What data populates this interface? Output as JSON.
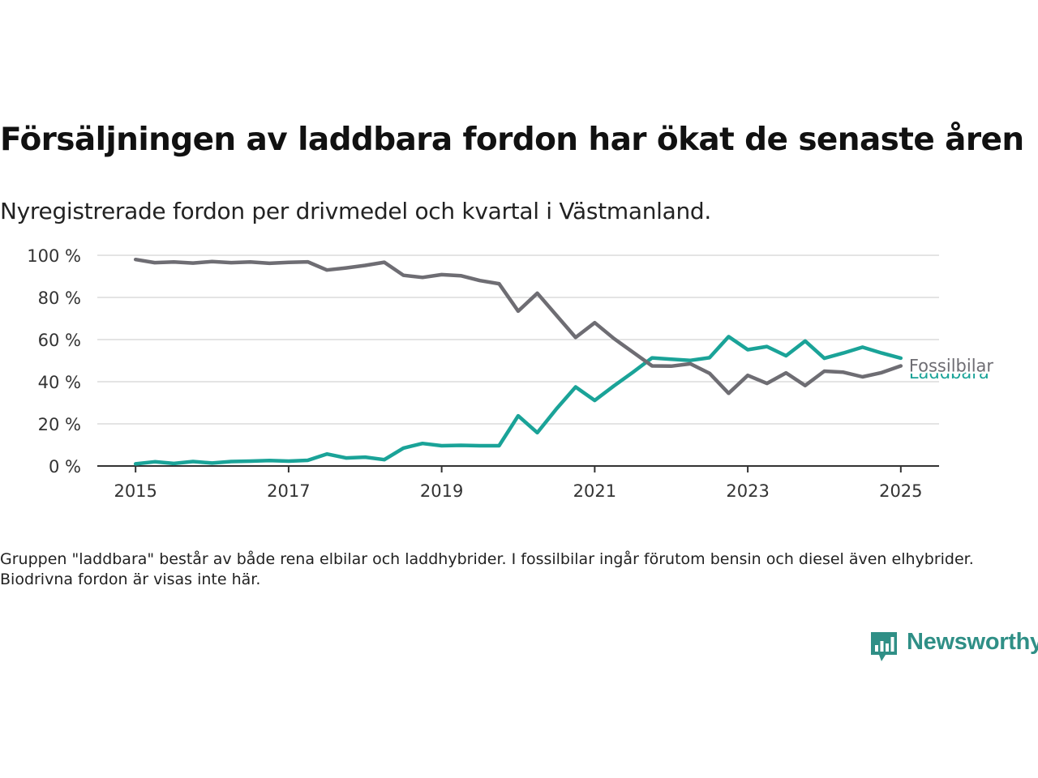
{
  "title": "Försäljningen av laddbara fordon har ökat de senaste åren",
  "subtitle": "Nyregistrerade fordon per drivmedel och kvartal i Västmanland.",
  "note": "Gruppen \"laddbara\" består av både rena elbilar och laddhybrider. I fossilbilar ingår förutom bensin och diesel även elhybrider. Biodrivna fordon är visas inte här.",
  "brand": {
    "name": "Newsworthy"
  },
  "chart_data": {
    "type": "line",
    "x_label": "",
    "y_label": "",
    "y_ticks": [
      "100 %",
      "80 %",
      "60 %",
      "40 %",
      "20 %",
      "0 %"
    ],
    "y_tick_values": [
      100,
      80,
      60,
      40,
      20,
      0
    ],
    "x_ticks": [
      "2015",
      "2017",
      "2019",
      "2021",
      "2023",
      "2025"
    ],
    "x_tick_values": [
      2015,
      2017,
      2019,
      2021,
      2023,
      2025
    ],
    "ylim": [
      0,
      100
    ],
    "xlim": [
      2014.5,
      2025.5
    ],
    "grid": true,
    "legend": "end-of-line labels",
    "x": [
      2015.0,
      2015.25,
      2015.5,
      2015.75,
      2016.0,
      2016.25,
      2016.5,
      2016.75,
      2017.0,
      2017.25,
      2017.5,
      2017.75,
      2018.0,
      2018.25,
      2018.5,
      2018.75,
      2019.0,
      2019.25,
      2019.5,
      2019.75,
      2020.0,
      2020.25,
      2020.5,
      2020.75,
      2021.0,
      2021.25,
      2021.5,
      2021.75,
      2022.0,
      2022.25,
      2022.5,
      2022.75,
      2023.0,
      2023.25,
      2023.5,
      2023.75,
      2024.0,
      2024.25,
      2024.5,
      2024.75,
      2025.0
    ],
    "series": [
      {
        "name": "Fossilbilar",
        "color": "#6e6d73",
        "values": [
          98,
          96.5,
          96.8,
          96.3,
          97,
          96.5,
          96.8,
          96.2,
          96.6,
          96.9,
          93,
          94,
          95.2,
          96.7,
          90.5,
          89.5,
          90.8,
          90.3,
          88,
          86.5,
          73.5,
          82,
          71.5,
          61,
          68,
          60.5,
          54,
          47.5,
          47.4,
          48.5,
          44,
          34.5,
          43,
          39.2,
          44.2,
          38.2,
          45,
          44.5,
          42.3,
          44.3,
          47.5
        ]
      },
      {
        "name": "Laddbara",
        "color": "#1aa398",
        "values": [
          1,
          2,
          1.2,
          2.1,
          1.4,
          2.1,
          2.3,
          2.6,
          2.3,
          2.7,
          5.7,
          3.8,
          4.2,
          3,
          8.5,
          10.7,
          9.6,
          9.8,
          9.6,
          9.6,
          23.8,
          15.8,
          27.1,
          37.5,
          31.1,
          38,
          44.5,
          51.3,
          50.7,
          50.1,
          51.4,
          61.4,
          55.2,
          56.7,
          52.3,
          59.3,
          51.1,
          53.6,
          56.4,
          53.6,
          51.2
        ]
      }
    ]
  }
}
